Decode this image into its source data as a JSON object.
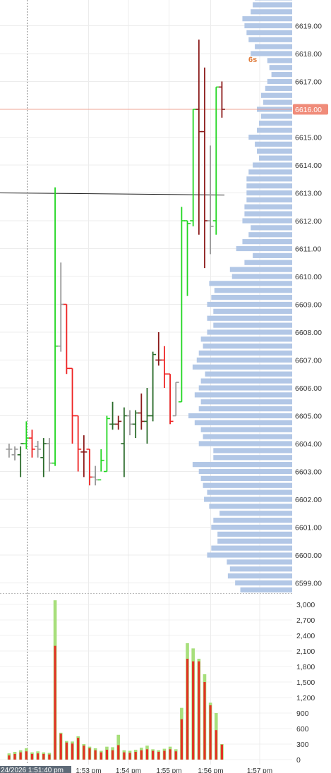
{
  "chart_data": [
    {
      "type": "ohlc",
      "price_axis": {
        "ticks": [
          "6599.00",
          "6600.00",
          "6601.00",
          "6602.00",
          "6603.00",
          "6604.00",
          "6605.00",
          "6606.00",
          "6607.00",
          "6608.00",
          "6609.00",
          "6610.00",
          "6611.00",
          "6612.00",
          "6613.00",
          "6614.00",
          "6615.00",
          "6616.00",
          "6617.00",
          "6618.00",
          "6619.00"
        ],
        "range": [
          6598.3,
          6620.1
        ]
      },
      "time_axis": {
        "ticks": [
          "1:53 pm",
          "1:54 pm",
          "1:55 pm",
          "1:56 pm",
          "1:57 pm"
        ],
        "cursor_label": "24/2026 1:51:40 pm"
      },
      "last_price_label": "6616.00",
      "last_price": 6616.0,
      "reference_line_price": 6612.95,
      "bar_timer": "6s",
      "colors": {
        "up": "#22d622",
        "down": "#ee2222",
        "up_dark": "#2a6b2a",
        "down_dark": "#8b1a1a",
        "neutral": "#999999",
        "profile": "#b2c7e6",
        "last_price": "#f08c7a"
      },
      "bars": [
        {
          "t": 0.5,
          "o": 6603.8,
          "h": 6604.0,
          "l": 6603.5,
          "c": 6603.8,
          "color": "neutral"
        },
        {
          "t": 1.5,
          "o": 6603.6,
          "h": 6603.9,
          "l": 6603.4,
          "c": 6603.8,
          "color": "neutral"
        },
        {
          "t": 2.5,
          "o": 6603.6,
          "h": 6603.9,
          "l": 6602.8,
          "c": 6604.0,
          "color": "up_dark"
        },
        {
          "t": 3.5,
          "o": 6604.0,
          "h": 6604.8,
          "l": 6603.8,
          "c": 6604.2,
          "color": "up"
        },
        {
          "t": 4.5,
          "o": 6604.2,
          "h": 6604.5,
          "l": 6603.5,
          "c": 6603.8,
          "color": "down"
        },
        {
          "t": 5.5,
          "o": 6603.9,
          "h": 6604.1,
          "l": 6603.5,
          "c": 6603.8,
          "color": "neutral"
        },
        {
          "t": 6.5,
          "o": 6603.5,
          "h": 6604.2,
          "l": 6602.8,
          "c": 6604.0,
          "color": "up_dark"
        },
        {
          "t": 7.5,
          "o": 6604.0,
          "h": 6604.2,
          "l": 6603.0,
          "c": 6603.3,
          "color": "neutral"
        },
        {
          "t": 8.5,
          "o": 6603.3,
          "h": 6613.2,
          "l": 6603.2,
          "c": 6607.5,
          "color": "up"
        },
        {
          "t": 9.5,
          "o": 6607.5,
          "h": 6610.5,
          "l": 6607.3,
          "c": 6609.0,
          "color": "neutral"
        },
        {
          "t": 10.5,
          "o": 6609.0,
          "h": 6609.0,
          "l": 6606.5,
          "c": 6606.7,
          "color": "down"
        },
        {
          "t": 11.5,
          "o": 6606.7,
          "h": 6606.7,
          "l": 6604.0,
          "c": 6605.0,
          "color": "down"
        },
        {
          "t": 12.5,
          "o": 6605.0,
          "h": 6605.0,
          "l": 6603.0,
          "c": 6603.8,
          "color": "down"
        },
        {
          "t": 13.5,
          "o": 6603.7,
          "h": 6604.3,
          "l": 6602.8,
          "c": 6603.7,
          "color": "down_dark"
        },
        {
          "t": 14.5,
          "o": 6603.8,
          "h": 6603.8,
          "l": 6602.5,
          "c": 6602.8,
          "color": "down"
        },
        {
          "t": 15.5,
          "o": 6602.8,
          "h": 6603.2,
          "l": 6602.5,
          "c": 6602.7,
          "color": "neutral"
        },
        {
          "t": 16.5,
          "o": 6602.7,
          "h": 6603.8,
          "l": 6603.0,
          "c": 6603.4,
          "color": "up"
        },
        {
          "t": 17.5,
          "o": 6603.0,
          "h": 6605.0,
          "l": 6603.0,
          "c": 6604.9,
          "color": "up"
        },
        {
          "t": 18.5,
          "o": 6604.7,
          "h": 6605.5,
          "l": 6604.5,
          "c": 6604.7,
          "color": "up_dark"
        },
        {
          "t": 19.5,
          "o": 6604.7,
          "h": 6605.0,
          "l": 6604.5,
          "c": 6604.8,
          "color": "down_dark"
        },
        {
          "t": 20.5,
          "o": 6604.0,
          "h": 6605.3,
          "l": 6602.8,
          "c": 6605.0,
          "color": "up_dark"
        },
        {
          "t": 21.5,
          "o": 6605.0,
          "h": 6605.2,
          "l": 6604.3,
          "c": 6604.7,
          "color": "neutral"
        },
        {
          "t": 22.5,
          "o": 6604.7,
          "h": 6605.2,
          "l": 6604.2,
          "c": 6605.1,
          "color": "up_dark"
        },
        {
          "t": 23.5,
          "o": 6605.1,
          "h": 6605.8,
          "l": 6604.5,
          "c": 6604.8,
          "color": "down_dark"
        },
        {
          "t": 24.5,
          "o": 6604.8,
          "h": 6606.0,
          "l": 6604.0,
          "c": 6605.0,
          "color": "up_dark"
        },
        {
          "t": 25.5,
          "o": 6605.0,
          "h": 6607.3,
          "l": 6604.8,
          "c": 6607.2,
          "color": "up_dark"
        },
        {
          "t": 26.5,
          "o": 6607.0,
          "h": 6608.0,
          "l": 6606.8,
          "c": 6607.0,
          "color": "down_dark"
        },
        {
          "t": 27.5,
          "o": 6607.0,
          "h": 6607.5,
          "l": 6606.0,
          "c": 6606.5,
          "color": "down"
        },
        {
          "t": 28.5,
          "o": 6606.5,
          "h": 6606.5,
          "l": 6604.7,
          "c": 6604.8,
          "color": "down"
        },
        {
          "t": 29.5,
          "o": 6605.0,
          "h": 6606.2,
          "l": 6605.0,
          "c": 6606.2,
          "color": "neutral"
        },
        {
          "t": 30.5,
          "o": 6605.5,
          "h": 6612.5,
          "l": 6605.5,
          "c": 6612.0,
          "color": "up"
        },
        {
          "t": 31.5,
          "o": 6612.0,
          "h": 6612.0,
          "l": 6609.3,
          "c": 6611.9,
          "color": "up"
        },
        {
          "t": 32.5,
          "o": 6612.0,
          "h": 6616.0,
          "l": 6611.8,
          "c": 6616.0,
          "color": "up"
        },
        {
          "t": 33.5,
          "o": 6616.0,
          "h": 6618.5,
          "l": 6611.5,
          "c": 6615.2,
          "color": "down_dark"
        },
        {
          "t": 34.5,
          "o": 6615.2,
          "h": 6617.5,
          "l": 6610.3,
          "c": 6612.0,
          "color": "down_dark"
        },
        {
          "t": 35.5,
          "o": 6612.0,
          "h": 6614.7,
          "l": 6610.8,
          "c": 6611.8,
          "color": "neutral"
        },
        {
          "t": 36.5,
          "o": 6612.0,
          "h": 6616.8,
          "l": 6611.5,
          "c": 6616.8,
          "color": "up"
        },
        {
          "t": 37.5,
          "o": 6616.8,
          "h": 6617.0,
          "l": 6615.7,
          "c": 6616.0,
          "color": "down_dark"
        }
      ]
    },
    {
      "type": "bar",
      "name": "volume",
      "y_axis": {
        "ticks": [
          "0",
          "300",
          "600",
          "900",
          "1,200",
          "1,500",
          "1,800",
          "2,100",
          "2,400",
          "2,700",
          "3,000"
        ],
        "range": [
          0,
          3000
        ]
      },
      "values": [
        {
          "t": 0.5,
          "total": 120,
          "part": 80
        },
        {
          "t": 1.5,
          "total": 150,
          "part": 110
        },
        {
          "t": 2.5,
          "total": 180,
          "part": 140
        },
        {
          "t": 3.5,
          "total": 220,
          "part": 160
        },
        {
          "t": 4.5,
          "total": 140,
          "part": 110
        },
        {
          "t": 5.5,
          "total": 160,
          "part": 120
        },
        {
          "t": 6.5,
          "total": 140,
          "part": 110
        },
        {
          "t": 7.5,
          "total": 130,
          "part": 100
        },
        {
          "t": 8.5,
          "total": 3080,
          "part": 2200
        },
        {
          "t": 9.5,
          "total": 520,
          "part": 500
        },
        {
          "t": 10.5,
          "total": 360,
          "part": 330
        },
        {
          "t": 11.5,
          "total": 350,
          "part": 310
        },
        {
          "t": 12.5,
          "total": 450,
          "part": 420
        },
        {
          "t": 13.5,
          "total": 300,
          "part": 270
        },
        {
          "t": 14.5,
          "total": 250,
          "part": 220
        },
        {
          "t": 15.5,
          "total": 220,
          "part": 180
        },
        {
          "t": 16.5,
          "total": 170,
          "part": 140
        },
        {
          "t": 17.5,
          "total": 250,
          "part": 190
        },
        {
          "t": 18.5,
          "total": 240,
          "part": 180
        },
        {
          "t": 19.5,
          "total": 480,
          "part": 280
        },
        {
          "t": 20.5,
          "total": 180,
          "part": 140
        },
        {
          "t": 21.5,
          "total": 170,
          "part": 130
        },
        {
          "t": 22.5,
          "total": 190,
          "part": 150
        },
        {
          "t": 23.5,
          "total": 230,
          "part": 180
        },
        {
          "t": 24.5,
          "total": 270,
          "part": 200
        },
        {
          "t": 25.5,
          "total": 200,
          "part": 170
        },
        {
          "t": 26.5,
          "total": 180,
          "part": 150
        },
        {
          "t": 27.5,
          "total": 210,
          "part": 170
        },
        {
          "t": 28.5,
          "total": 250,
          "part": 200
        },
        {
          "t": 29.5,
          "total": 200,
          "part": 160
        },
        {
          "t": 30.5,
          "total": 1000,
          "part": 780
        },
        {
          "t": 31.5,
          "total": 2250,
          "part": 1950
        },
        {
          "t": 32.5,
          "total": 2150,
          "part": 1900
        },
        {
          "t": 33.5,
          "total": 1950,
          "part": 1900
        },
        {
          "t": 34.5,
          "total": 1650,
          "part": 1500
        },
        {
          "t": 35.5,
          "total": 1100,
          "part": 1050
        },
        {
          "t": 36.5,
          "total": 900,
          "part": 570
        },
        {
          "t": 37.5,
          "total": 300,
          "part": 290
        }
      ]
    },
    {
      "type": "bar",
      "name": "volume-profile",
      "orientation": "horizontal",
      "levels": [
        {
          "p": 6598.75,
          "v": 0.5
        },
        {
          "p": 6599.0,
          "v": 0.55
        },
        {
          "p": 6599.25,
          "v": 0.62
        },
        {
          "p": 6599.5,
          "v": 0.6
        },
        {
          "p": 6599.75,
          "v": 0.63
        },
        {
          "p": 6600.0,
          "v": 0.82
        },
        {
          "p": 6600.25,
          "v": 0.78
        },
        {
          "p": 6600.5,
          "v": 0.72
        },
        {
          "p": 6600.75,
          "v": 0.72
        },
        {
          "p": 6601.0,
          "v": 0.78
        },
        {
          "p": 6601.25,
          "v": 0.76
        },
        {
          "p": 6601.5,
          "v": 0.7
        },
        {
          "p": 6601.75,
          "v": 0.8
        },
        {
          "p": 6602.0,
          "v": 0.85
        },
        {
          "p": 6602.25,
          "v": 0.82
        },
        {
          "p": 6602.5,
          "v": 0.86
        },
        {
          "p": 6602.75,
          "v": 0.88
        },
        {
          "p": 6603.0,
          "v": 0.9
        },
        {
          "p": 6603.25,
          "v": 0.96
        },
        {
          "p": 6603.5,
          "v": 0.76
        },
        {
          "p": 6603.75,
          "v": 0.76
        },
        {
          "p": 6604.0,
          "v": 0.9
        },
        {
          "p": 6604.25,
          "v": 0.86
        },
        {
          "p": 6604.5,
          "v": 0.88
        },
        {
          "p": 6604.75,
          "v": 0.94
        },
        {
          "p": 6605.0,
          "v": 1.0
        },
        {
          "p": 6605.25,
          "v": 0.9
        },
        {
          "p": 6605.5,
          "v": 0.88
        },
        {
          "p": 6605.75,
          "v": 0.94
        },
        {
          "p": 6606.0,
          "v": 0.9
        },
        {
          "p": 6606.25,
          "v": 0.88
        },
        {
          "p": 6606.5,
          "v": 0.84
        },
        {
          "p": 6606.75,
          "v": 0.96
        },
        {
          "p": 6607.0,
          "v": 0.92
        },
        {
          "p": 6607.25,
          "v": 0.9
        },
        {
          "p": 6607.5,
          "v": 0.86
        },
        {
          "p": 6607.75,
          "v": 0.88
        },
        {
          "p": 6608.0,
          "v": 0.82
        },
        {
          "p": 6608.25,
          "v": 0.76
        },
        {
          "p": 6608.5,
          "v": 0.82
        },
        {
          "p": 6608.75,
          "v": 0.76
        },
        {
          "p": 6609.0,
          "v": 0.82
        },
        {
          "p": 6609.25,
          "v": 0.78
        },
        {
          "p": 6609.5,
          "v": 0.75
        },
        {
          "p": 6609.75,
          "v": 0.8
        },
        {
          "p": 6610.0,
          "v": 0.58
        },
        {
          "p": 6610.25,
          "v": 0.6
        },
        {
          "p": 6610.5,
          "v": 0.46
        },
        {
          "p": 6610.75,
          "v": 0.38
        },
        {
          "p": 6611.0,
          "v": 0.54
        },
        {
          "p": 6611.25,
          "v": 0.48
        },
        {
          "p": 6611.5,
          "v": 0.42
        },
        {
          "p": 6611.75,
          "v": 0.4
        },
        {
          "p": 6612.0,
          "v": 0.48
        },
        {
          "p": 6612.25,
          "v": 0.46
        },
        {
          "p": 6612.5,
          "v": 0.46
        },
        {
          "p": 6612.75,
          "v": 0.44
        },
        {
          "p": 6613.0,
          "v": 0.44
        },
        {
          "p": 6613.25,
          "v": 0.44
        },
        {
          "p": 6613.5,
          "v": 0.44
        },
        {
          "p": 6613.75,
          "v": 0.42
        },
        {
          "p": 6614.0,
          "v": 0.38
        },
        {
          "p": 6614.25,
          "v": 0.32
        },
        {
          "p": 6614.5,
          "v": 0.34
        },
        {
          "p": 6614.75,
          "v": 0.36
        },
        {
          "p": 6615.0,
          "v": 0.42
        },
        {
          "p": 6615.25,
          "v": 0.34
        },
        {
          "p": 6615.5,
          "v": 0.32
        },
        {
          "p": 6615.75,
          "v": 0.3
        },
        {
          "p": 6616.0,
          "v": 0.34
        },
        {
          "p": 6616.25,
          "v": 0.28
        },
        {
          "p": 6616.5,
          "v": 0.3
        },
        {
          "p": 6616.75,
          "v": 0.26
        },
        {
          "p": 6617.0,
          "v": 0.24
        },
        {
          "p": 6617.25,
          "v": 0.2
        },
        {
          "p": 6617.5,
          "v": 0.22
        },
        {
          "p": 6617.75,
          "v": 0.24
        },
        {
          "p": 6618.0,
          "v": 0.4
        },
        {
          "p": 6618.25,
          "v": 0.36
        },
        {
          "p": 6618.5,
          "v": 0.42
        },
        {
          "p": 6618.75,
          "v": 0.44
        },
        {
          "p": 6619.0,
          "v": 0.46
        },
        {
          "p": 6619.25,
          "v": 0.48
        },
        {
          "p": 6619.5,
          "v": 0.4
        },
        {
          "p": 6619.75,
          "v": 0.38
        },
        {
          "p": 6620.0,
          "v": 0.36
        }
      ]
    }
  ]
}
